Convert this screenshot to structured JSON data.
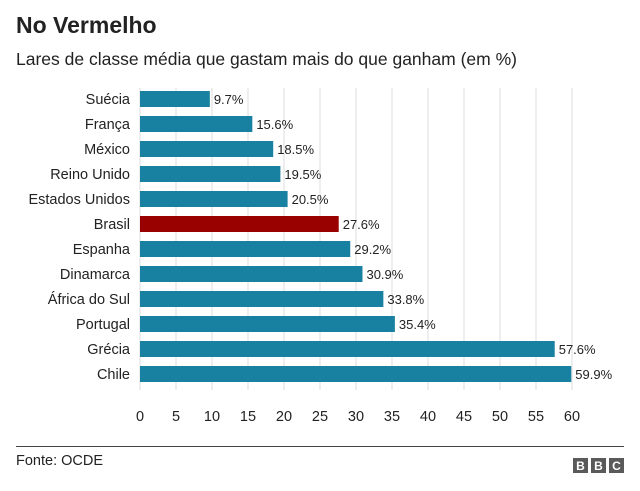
{
  "header": {
    "title": "No Vermelho",
    "subtitle": "Lares de classe média que gastam mais do que ganham (em %)"
  },
  "footer": {
    "source": "Fonte: OCDE",
    "logo_letters": [
      "B",
      "B",
      "C"
    ]
  },
  "colors": {
    "bar": "#1880a0",
    "highlight": "#990000",
    "grid": "#dddddd",
    "text": "#222222"
  },
  "chart_data": {
    "type": "bar",
    "orientation": "horizontal",
    "title": "No Vermelho",
    "subtitle": "Lares de classe média que gastam mais do que ganham (em %)",
    "categories": [
      "Suécia",
      "França",
      "México",
      "Reino Unido",
      "Estados Unidos",
      "Brasil",
      "Espanha",
      "Dinamarca",
      "África do Sul",
      "Portugal",
      "Grécia",
      "Chile"
    ],
    "values": [
      9.7,
      15.6,
      18.5,
      19.5,
      20.5,
      27.6,
      29.2,
      30.9,
      33.8,
      35.4,
      57.6,
      59.9
    ],
    "value_labels": [
      "9.7%",
      "15.6%",
      "18.5%",
      "19.5%",
      "20.5%",
      "27.6%",
      "29.2%",
      "30.9%",
      "33.8%",
      "35.4%",
      "57.6%",
      "59.9%"
    ],
    "highlight_category": "Brasil",
    "xlim": [
      0,
      60
    ],
    "xticks": [
      0,
      5,
      10,
      15,
      20,
      25,
      30,
      35,
      40,
      45,
      50,
      55,
      60
    ],
    "grid": "vertical",
    "xlabel": "",
    "ylabel": ""
  }
}
